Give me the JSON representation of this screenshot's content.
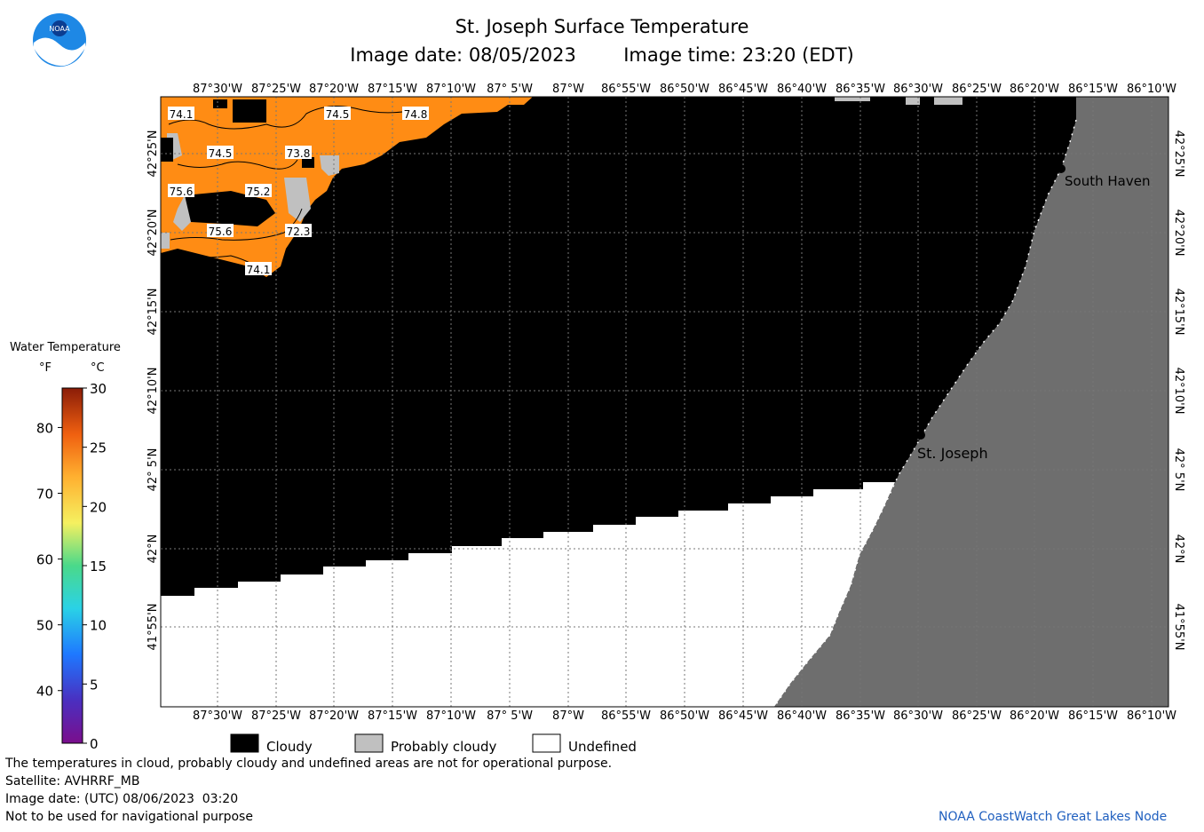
{
  "header": {
    "title": "St. Joseph Surface Temperature",
    "image_date_label": "Image date: 08/05/2023",
    "image_time_label": "Image time: 23:20 (EDT)"
  },
  "logo": {
    "text": "NOAA"
  },
  "map": {
    "lon_ticks": [
      "87°30'W",
      "87°25'W",
      "87°20'W",
      "87°15'W",
      "87°10'W",
      "87° 5'W",
      "87°W",
      "86°55'W",
      "86°50'W",
      "86°45'W",
      "86°40'W",
      "86°35'W",
      "86°30'W",
      "86°25'W",
      "86°20'W",
      "86°15'W",
      "86°10'W"
    ],
    "lat_ticks": [
      "42°25'N",
      "42°20'N",
      "42°15'N",
      "42°10'N",
      "42° 5'N",
      "42°N",
      "41°55'N"
    ],
    "cities": [
      {
        "name": "South Haven"
      },
      {
        "name": "St. Joseph"
      }
    ],
    "temperature_labels": [
      "74.1",
      "74.5",
      "74.8",
      "74.5",
      "73.8",
      "75.6",
      "75.2",
      "75.6",
      "72.3",
      "74.1"
    ],
    "colors": {
      "warm_water": "#ff8c14",
      "cloudy": "#000000",
      "probably_cloudy": "#c0c0c0",
      "undefined": "#ffffff",
      "land": "#6e6e6e"
    }
  },
  "colorbar": {
    "title": "Water Temperature",
    "unit_f": "°F",
    "unit_c": "°C",
    "f_ticks": [
      "80",
      "70",
      "60",
      "50",
      "40"
    ],
    "c_ticks": [
      "30",
      "25",
      "20",
      "15",
      "10",
      "5",
      "0"
    ]
  },
  "legend": {
    "cloudy": "Cloudy",
    "probably_cloudy": "Probably cloudy",
    "undefined": "Undefined"
  },
  "footer": {
    "note": "The temperatures in cloud, probably cloudy and undefined areas are not for operational purpose.",
    "satellite": "Satellite: AVHRRF_MB",
    "utc_date": "Image date: (UTC) 08/06/2023  03:20",
    "navigation": "Not to be used for navigational purpose",
    "credit": "NOAA CoastWatch Great Lakes Node"
  }
}
